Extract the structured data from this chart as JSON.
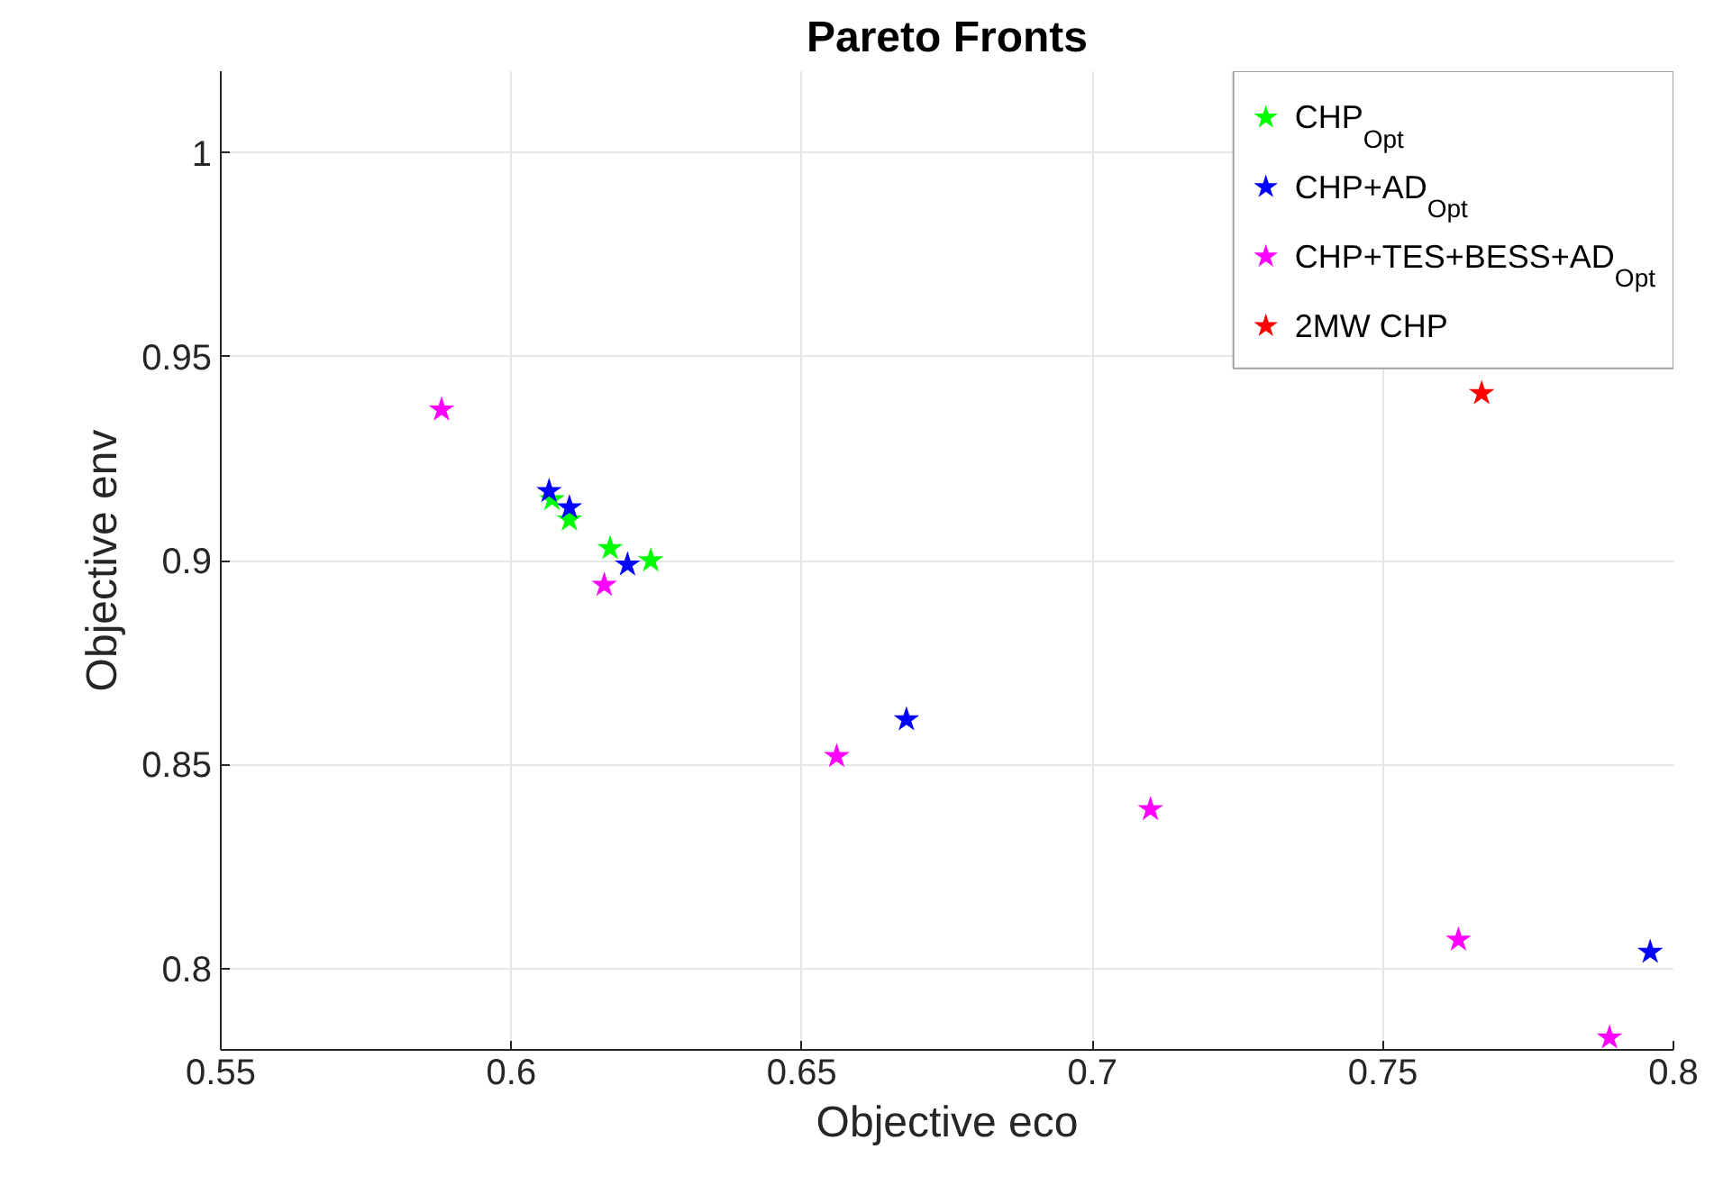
{
  "chart_data": {
    "type": "scatter",
    "title": "Pareto Fronts",
    "xlabel": "Objective eco",
    "ylabel": "Objective env",
    "xlim": [
      0.55,
      0.8
    ],
    "ylim": [
      0.78,
      1.02
    ],
    "xticks": [
      0.55,
      0.6,
      0.65,
      0.7,
      0.75,
      0.8
    ],
    "yticks": [
      0.8,
      0.85,
      0.9,
      0.95,
      1
    ],
    "grid": true,
    "legend": "top right",
    "marker": "star",
    "series": [
      {
        "name": "CHP$_{Opt}$",
        "color": "#00ff00",
        "x": [
          0.607,
          0.61,
          0.617,
          0.624
        ],
        "values": [
          0.915,
          0.91,
          0.903,
          0.9
        ]
      },
      {
        "name": "CHP+AD$_{Opt}$",
        "color": "#0000ff",
        "x": [
          0.6065,
          0.61,
          0.62,
          0.668,
          0.796
        ],
        "values": [
          0.917,
          0.913,
          0.899,
          0.861,
          0.804
        ]
      },
      {
        "name": "CHP+TES+BESS+AD$_{Opt}$",
        "color": "#ff00ff",
        "x": [
          0.588,
          0.616,
          0.656,
          0.71,
          0.763,
          0.789
        ],
        "values": [
          0.937,
          0.894,
          0.852,
          0.839,
          0.807,
          0.783
        ]
      },
      {
        "name": "2MW CHP",
        "color": "#ff0000",
        "x": [
          0.767
        ],
        "values": [
          0.941
        ]
      }
    ]
  }
}
